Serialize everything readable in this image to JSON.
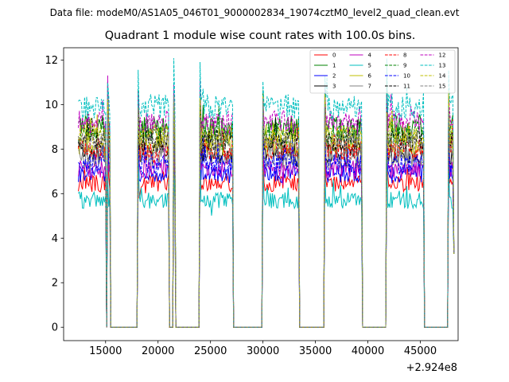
{
  "chart_data": {
    "type": "line",
    "suptitle": "Data file: modeM0/AS1A05_046T01_9000002834_19074cztM0_level2_quad_clean.evt",
    "title": "Quadrant 1 module wise count rates with 100.0s bins.",
    "xlabel": "",
    "ylabel": "",
    "x_offset_label": "+2.924e8",
    "xlim": [
      11000,
      48600
    ],
    "ylim": [
      -0.6,
      12.55
    ],
    "x_ticks": [
      15000,
      20000,
      25000,
      30000,
      35000,
      40000,
      45000
    ],
    "x_tick_labels": [
      "15000",
      "20000",
      "25000",
      "30000",
      "35000",
      "40000",
      "45000"
    ],
    "y_ticks": [
      0,
      2,
      4,
      6,
      8,
      10,
      12
    ],
    "y_tick_labels": [
      "0",
      "2",
      "4",
      "6",
      "8",
      "10",
      "12"
    ],
    "bin_seconds": 100,
    "x_start": 12400,
    "x_end": 48200,
    "segments": [
      {
        "start": 12400,
        "end": 15050,
        "on": true
      },
      {
        "start": 15050,
        "end": 15150,
        "on": false
      },
      {
        "start": 15150,
        "end": 15450,
        "on": true
      },
      {
        "start": 15450,
        "end": 18050,
        "on": false
      },
      {
        "start": 18050,
        "end": 21050,
        "on": true
      },
      {
        "start": 21050,
        "end": 21450,
        "on": false
      },
      {
        "start": 21450,
        "end": 21650,
        "on": true
      },
      {
        "start": 21650,
        "end": 23950,
        "on": false
      },
      {
        "start": 23950,
        "end": 27150,
        "on": true
      },
      {
        "start": 27150,
        "end": 29950,
        "on": false
      },
      {
        "start": 29950,
        "end": 33450,
        "on": true
      },
      {
        "start": 33450,
        "end": 35850,
        "on": false
      },
      {
        "start": 35850,
        "end": 39450,
        "on": true
      },
      {
        "start": 39450,
        "end": 41750,
        "on": false
      },
      {
        "start": 41750,
        "end": 45350,
        "on": true
      },
      {
        "start": 45350,
        "end": 47650,
        "on": false
      },
      {
        "start": 47650,
        "end": 48200,
        "on": true
      }
    ],
    "end_value": 3.3,
    "series": [
      {
        "name": "0",
        "color": "#ff0000",
        "dash": "solid",
        "mean": 6.5
      },
      {
        "name": "1",
        "color": "#008000",
        "dash": "solid",
        "mean": 9.0
      },
      {
        "name": "2",
        "color": "#0000ff",
        "dash": "solid",
        "mean": 6.9
      },
      {
        "name": "3",
        "color": "#000000",
        "dash": "solid",
        "mean": 7.8
      },
      {
        "name": "4",
        "color": "#bf00bf",
        "dash": "solid",
        "mean": 7.1
      },
      {
        "name": "5",
        "color": "#00bfbf",
        "dash": "solid",
        "mean": 5.7
      },
      {
        "name": "6",
        "color": "#bfbf00",
        "dash": "solid",
        "mean": 8.2
      },
      {
        "name": "7",
        "color": "#808080",
        "dash": "solid",
        "mean": 7.6
      },
      {
        "name": "8",
        "color": "#ff0000",
        "dash": "dashed",
        "mean": 8.0
      },
      {
        "name": "9",
        "color": "#008000",
        "dash": "dashed",
        "mean": 8.7
      },
      {
        "name": "10",
        "color": "#0000ff",
        "dash": "dashed",
        "mean": 7.3
      },
      {
        "name": "11",
        "color": "#000000",
        "dash": "dashed",
        "mean": 8.4
      },
      {
        "name": "12",
        "color": "#bf00bf",
        "dash": "dashed",
        "mean": 9.2
      },
      {
        "name": "13",
        "color": "#00bfbf",
        "dash": "dashed",
        "mean": 9.9
      },
      {
        "name": "14",
        "color": "#bfbf00",
        "dash": "dashed",
        "mean": 8.6
      },
      {
        "name": "15",
        "color": "#808080",
        "dash": "dashed",
        "mean": 8.3
      }
    ]
  }
}
